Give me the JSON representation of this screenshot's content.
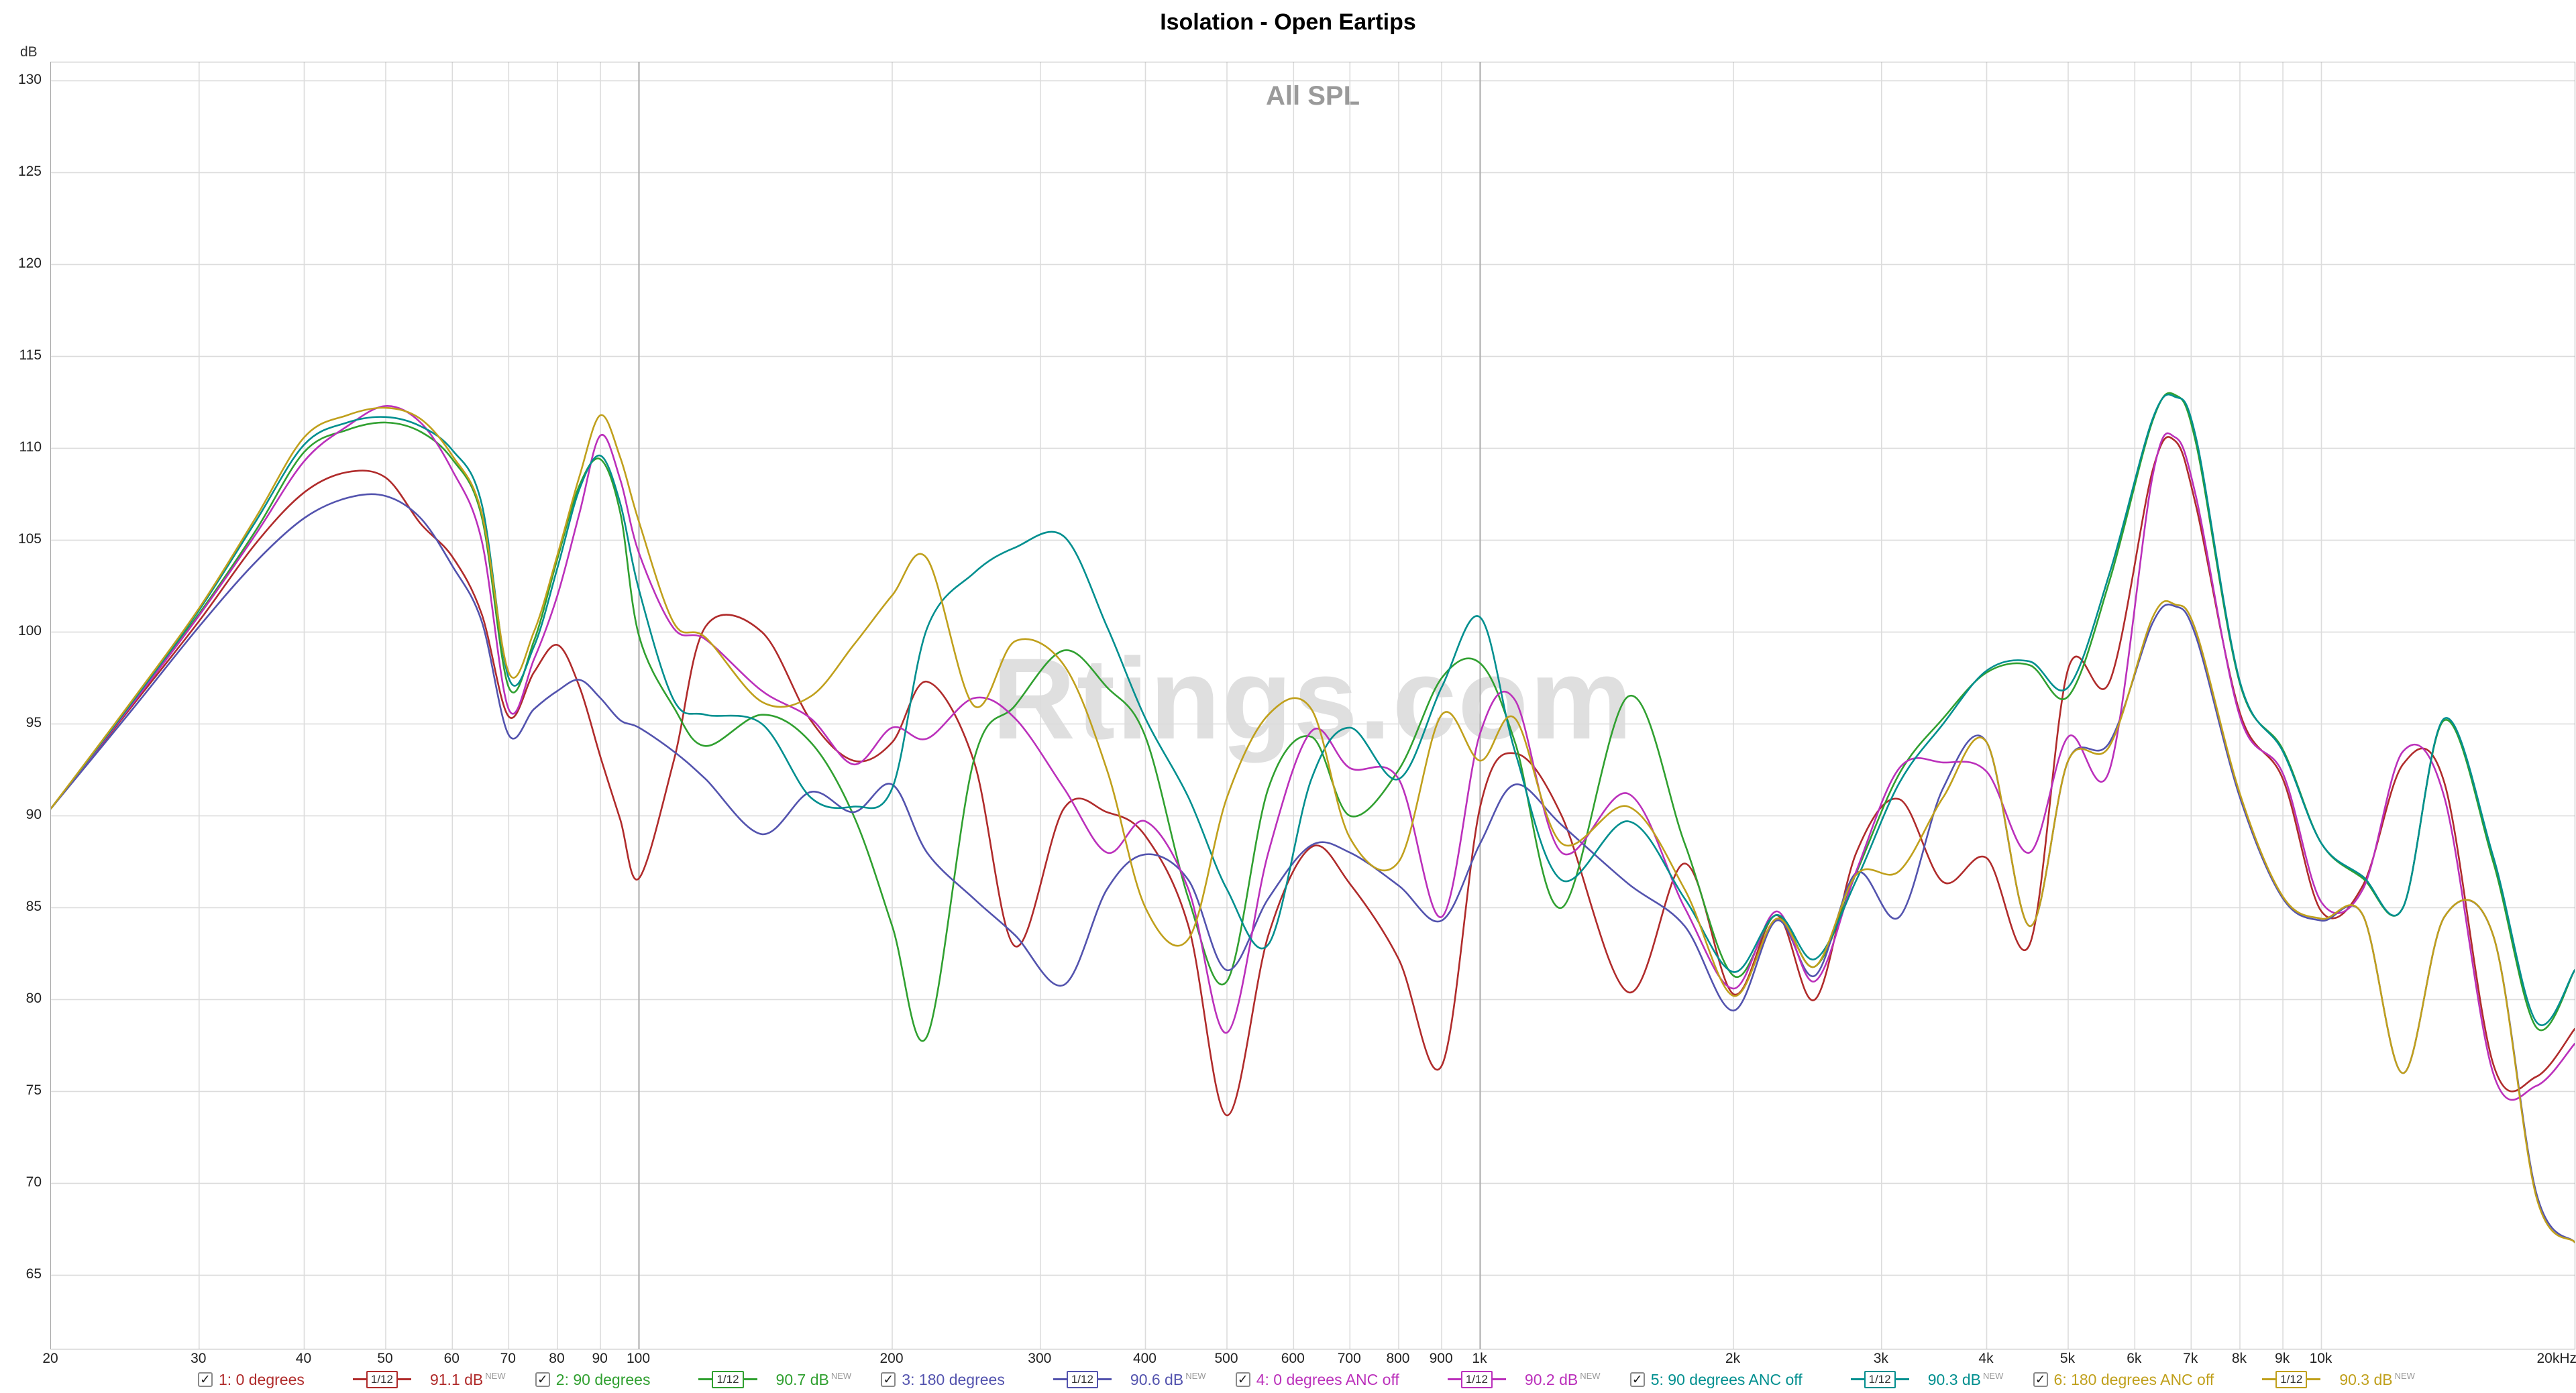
{
  "title": "Isolation - Open Eartips",
  "watermark": "Rtings.com",
  "chart_data": {
    "type": "line",
    "overlay_title": "All SPL",
    "y_unit": "dB",
    "x_unit": "Hz",
    "x_scale": "log",
    "xlim": [
      20,
      20000
    ],
    "ylim": [
      61,
      131
    ],
    "grid": true,
    "legend_position": "bottom",
    "y_ticks": [
      130,
      125,
      120,
      115,
      110,
      105,
      100,
      95,
      90,
      85,
      80,
      75,
      70,
      65
    ],
    "x_ticks": [
      [
        20,
        "20"
      ],
      [
        30,
        "30"
      ],
      [
        40,
        "40"
      ],
      [
        50,
        "50"
      ],
      [
        60,
        "60"
      ],
      [
        70,
        "70"
      ],
      [
        80,
        "80"
      ],
      [
        90,
        "90"
      ],
      [
        100,
        "100"
      ],
      [
        200,
        "200"
      ],
      [
        300,
        "300"
      ],
      [
        400,
        "400"
      ],
      [
        500,
        "500"
      ],
      [
        600,
        "600"
      ],
      [
        700,
        "700"
      ],
      [
        800,
        "800"
      ],
      [
        900,
        "900"
      ],
      [
        1000,
        "1k"
      ],
      [
        2000,
        "2k"
      ],
      [
        3000,
        "3k"
      ],
      [
        4000,
        "4k"
      ],
      [
        5000,
        "5k"
      ],
      [
        6000,
        "6k"
      ],
      [
        7000,
        "7k"
      ],
      [
        8000,
        "8k"
      ],
      [
        9000,
        "9k"
      ],
      [
        10000,
        "10k"
      ],
      [
        20000,
        "20kHz"
      ]
    ],
    "x_gridlines": [
      30,
      40,
      50,
      60,
      70,
      80,
      90,
      100,
      200,
      300,
      400,
      500,
      600,
      700,
      800,
      900,
      1000,
      2000,
      3000,
      4000,
      5000,
      6000,
      7000,
      8000,
      9000,
      10000
    ],
    "x_major_gridlines": [
      100,
      1000
    ],
    "frequencies": [
      20,
      25,
      30,
      35,
      40,
      45,
      50,
      55,
      60,
      65,
      70,
      75,
      80,
      85,
      90,
      95,
      100,
      110,
      120,
      140,
      160,
      180,
      200,
      220,
      250,
      280,
      320,
      360,
      400,
      450,
      500,
      560,
      630,
      700,
      800,
      900,
      1000,
      1100,
      1250,
      1500,
      1750,
      2000,
      2250,
      2500,
      2800,
      3150,
      3550,
      4000,
      4500,
      5000,
      5600,
      6300,
      6700,
      7100,
      8000,
      9000,
      10000,
      11200,
      12500,
      14000,
      16000,
      18000,
      20000
    ],
    "series": [
      {
        "label": "1: 0 degrees",
        "color": "#b02b2b",
        "smoothing": "1/12",
        "value": "91.1 dB",
        "badge": "NEW",
        "checked": true,
        "values": [
          90.4,
          96.0,
          100.6,
          104.8,
          107.6,
          108.7,
          108.4,
          105.9,
          104.1,
          101.0,
          95.4,
          97.8,
          99.3,
          97.0,
          93.2,
          89.8,
          86.6,
          93.0,
          100.3,
          100.0,
          95.2,
          93.0,
          94.0,
          97.3,
          93.0,
          82.9,
          90.4,
          90.2,
          88.9,
          84.0,
          73.7,
          83.5,
          88.3,
          86.3,
          82.2,
          76.4,
          90.5,
          93.4,
          90.0,
          80.4,
          87.4,
          80.3,
          84.6,
          80.0,
          88.0,
          90.9,
          86.4,
          87.7,
          83.0,
          98.0,
          97.3,
          108.8,
          110.4,
          106.8,
          95.6,
          92.0,
          84.8,
          86.2,
          92.8,
          91.8,
          76.5,
          75.8,
          78.4
        ]
      },
      {
        "label": "2: 90 degrees",
        "color": "#30a030",
        "smoothing": "1/12",
        "value": "90.7 dB",
        "badge": "NEW",
        "checked": true,
        "values": [
          90.4,
          96.2,
          101.0,
          105.5,
          109.8,
          111.0,
          111.4,
          110.9,
          109.4,
          106.3,
          97.0,
          99.5,
          104.0,
          108.0,
          109.4,
          106.5,
          99.8,
          95.9,
          93.8,
          95.5,
          94.0,
          90.0,
          84.0,
          78.0,
          93.0,
          96.0,
          99.0,
          97.0,
          94.3,
          85.5,
          81.0,
          91.5,
          94.3,
          90.0,
          92.5,
          97.5,
          98.3,
          94.0,
          85.0,
          96.5,
          88.5,
          81.3,
          84.6,
          81.8,
          86.9,
          92.3,
          95.3,
          97.8,
          98.2,
          96.5,
          102.8,
          111.5,
          112.9,
          110.2,
          97.2,
          93.6,
          88.5,
          86.6,
          85.0,
          95.2,
          87.5,
          78.5,
          81.6
        ]
      },
      {
        "label": "3: 180 degrees",
        "color": "#5353ae",
        "smoothing": "1/12",
        "value": "90.6 dB",
        "badge": "NEW",
        "checked": true,
        "values": [
          90.4,
          95.8,
          100.3,
          103.8,
          106.2,
          107.3,
          107.4,
          106.2,
          103.6,
          100.6,
          94.4,
          95.8,
          96.8,
          97.4,
          96.4,
          95.2,
          94.8,
          93.5,
          92.0,
          89.0,
          91.3,
          90.2,
          91.7,
          88.0,
          85.5,
          83.5,
          80.8,
          86.0,
          87.9,
          86.5,
          81.6,
          85.5,
          88.4,
          88.0,
          86.2,
          84.3,
          88.5,
          91.7,
          89.5,
          86.3,
          84.0,
          79.4,
          84.3,
          81.3,
          86.9,
          84.5,
          91.5,
          94.0,
          84.0,
          93.0,
          94.0,
          100.5,
          101.4,
          99.7,
          91.0,
          85.5,
          84.3,
          84.6,
          76.0,
          84.5,
          83.5,
          69.5,
          66.8
        ]
      },
      {
        "label": "4: 0 degrees ANC off",
        "color": "#bb30bb",
        "smoothing": "1/12",
        "value": "90.2 dB",
        "badge": "NEW",
        "checked": true,
        "values": [
          90.4,
          96.1,
          100.9,
          105.3,
          109.3,
          111.2,
          112.3,
          111.4,
          108.8,
          105.0,
          95.8,
          98.5,
          102.0,
          106.5,
          110.7,
          108.3,
          104.3,
          100.2,
          99.6,
          96.8,
          95.3,
          92.8,
          94.8,
          94.2,
          96.4,
          95.3,
          91.5,
          88.0,
          89.7,
          86.0,
          78.2,
          88.0,
          94.6,
          92.6,
          92.0,
          84.5,
          94.5,
          96.3,
          88.0,
          91.2,
          85.0,
          80.6,
          84.8,
          81.0,
          87.0,
          92.6,
          92.9,
          92.4,
          88.0,
          94.3,
          92.5,
          108.5,
          110.6,
          107.3,
          95.4,
          92.3,
          85.3,
          86.0,
          93.5,
          91.0,
          76.0,
          75.3,
          77.6
        ]
      },
      {
        "label": "5: 90 degrees ANC off",
        "color": "#008f8f",
        "smoothing": "1/12",
        "value": "90.3 dB",
        "badge": "NEW",
        "checked": true,
        "values": [
          90.4,
          96.2,
          101.2,
          106.0,
          110.2,
          111.4,
          111.7,
          111.2,
          109.9,
          107.0,
          97.5,
          99.2,
          103.5,
          107.8,
          109.6,
          107.0,
          102.3,
          96.3,
          95.5,
          95.0,
          91.0,
          90.5,
          91.5,
          100.2,
          103.2,
          104.6,
          105.2,
          100.3,
          95.3,
          91.0,
          86.0,
          83.0,
          92.0,
          94.8,
          92.0,
          97.0,
          100.8,
          93.5,
          86.5,
          89.7,
          85.5,
          81.5,
          84.6,
          82.2,
          86.5,
          91.8,
          95.0,
          97.9,
          98.4,
          97.0,
          103.2,
          111.6,
          112.8,
          110.5,
          97.3,
          93.5,
          88.5,
          86.7,
          85.0,
          95.3,
          87.8,
          78.8,
          81.6
        ]
      },
      {
        "label": "6: 180 degrees ANC off",
        "color": "#c0a01c",
        "smoothing": "1/12",
        "value": "90.3 dB",
        "badge": "NEW",
        "checked": true,
        "values": [
          90.4,
          96.3,
          101.3,
          106.2,
          110.6,
          111.8,
          112.2,
          111.6,
          109.6,
          106.5,
          97.8,
          100.0,
          104.2,
          108.5,
          111.8,
          109.5,
          106.0,
          100.5,
          99.7,
          96.2,
          96.5,
          99.3,
          102.0,
          104.0,
          96.0,
          99.5,
          98.2,
          92.5,
          85.0,
          83.3,
          91.0,
          95.5,
          95.8,
          88.8,
          87.5,
          95.5,
          93.0,
          95.3,
          88.5,
          90.5,
          86.0,
          80.2,
          84.4,
          81.8,
          86.8,
          87.0,
          91.0,
          94.0,
          84.0,
          93.0,
          93.8,
          100.8,
          101.5,
          100.0,
          91.2,
          85.6,
          84.4,
          84.6,
          76.0,
          84.5,
          83.5,
          69.3,
          66.8
        ]
      }
    ]
  }
}
